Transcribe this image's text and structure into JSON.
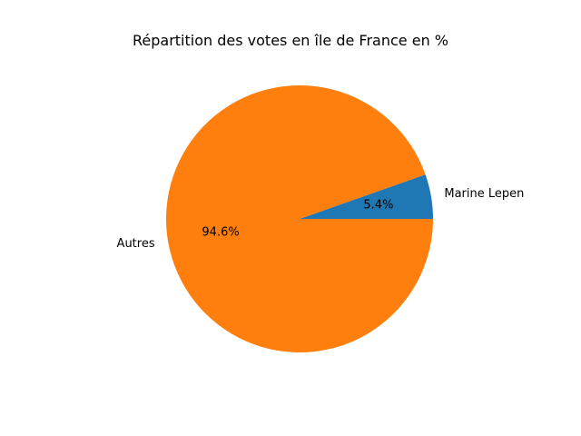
{
  "chart_data": {
    "type": "pie",
    "title": "Répartition des votes en île de France en %",
    "slices": [
      {
        "label": "Marine Lepen",
        "value": 5.4,
        "pct_label": "5.4%",
        "color": "#1f77b4"
      },
      {
        "label": "Autres",
        "value": 94.6,
        "pct_label": "94.6%",
        "color": "#ff7f0e"
      }
    ],
    "start_angle_deg": 0,
    "direction": "counterclockwise"
  }
}
